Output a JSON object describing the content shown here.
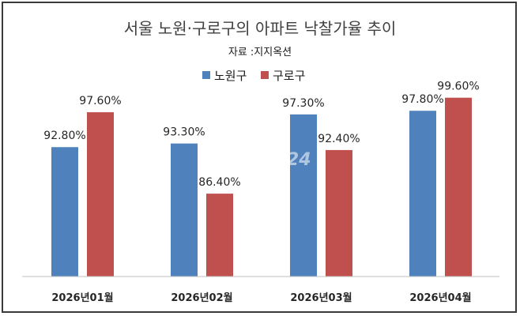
{
  "title": "서울 노원·구로구의 아파트 낙찰가율 추이",
  "subtitle": "자료 :지지옥션",
  "watermark": "아이뉴스 24",
  "colors": {
    "series_1": "#4f81bd",
    "series_2": "#c0504d",
    "axis": "#bfbfbf"
  },
  "chart_data": {
    "type": "bar",
    "categories": [
      "2026년01월",
      "2026년02월",
      "2026년03월",
      "2026년04월"
    ],
    "series": [
      {
        "name": "노원구",
        "values": [
          92.8,
          93.3,
          97.3,
          97.8
        ],
        "labels": [
          "92.80%",
          "93.30%",
          "97.30%",
          "97.80%"
        ]
      },
      {
        "name": "구로구",
        "values": [
          97.6,
          86.4,
          92.4,
          99.6
        ],
        "labels": [
          "97.60%",
          "86.40%",
          "92.40%",
          "99.60%"
        ]
      }
    ],
    "ylim": [
      75,
      100
    ],
    "grid": false,
    "legend": "top-center"
  }
}
